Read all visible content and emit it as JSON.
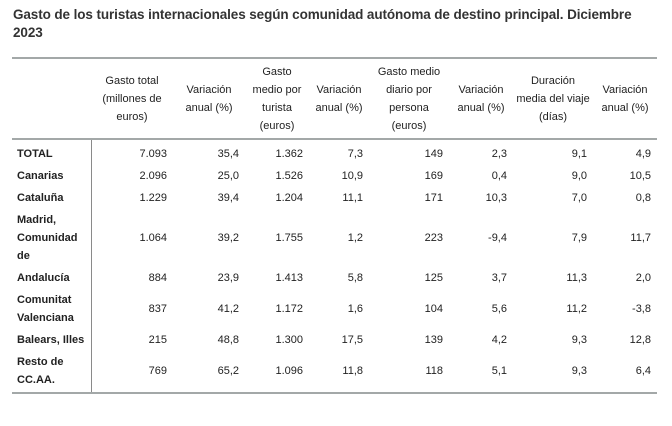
{
  "title": "Gasto de los turistas internacionales según comunidad autónoma de destino principal. Diciembre 2023",
  "table": {
    "columns": [
      "",
      "Gasto total (millones de euros)",
      "Variación anual (%)",
      "Gasto medio por turista (euros)",
      "Variación anual (%)",
      "Gasto medio diario por persona (euros)",
      "Variación anual (%)",
      "Duración media del viaje (días)",
      "Variación anual (%)"
    ],
    "rows": [
      {
        "label": "TOTAL",
        "values": [
          "7.093",
          "35,4",
          "1.362",
          "7,3",
          "149",
          "2,3",
          "9,1",
          "4,9"
        ]
      },
      {
        "label": "Canarias",
        "values": [
          "2.096",
          "25,0",
          "1.526",
          "10,9",
          "169",
          "0,4",
          "9,0",
          "10,5"
        ]
      },
      {
        "label": "Cataluña",
        "values": [
          "1.229",
          "39,4",
          "1.204",
          "11,1",
          "171",
          "10,3",
          "7,0",
          "0,8"
        ]
      },
      {
        "label": "Madrid, Comunidad de",
        "values": [
          "1.064",
          "39,2",
          "1.755",
          "1,2",
          "223",
          "-9,4",
          "7,9",
          "11,7"
        ]
      },
      {
        "label": "Andalucía",
        "values": [
          "884",
          "23,9",
          "1.413",
          "5,8",
          "125",
          "3,7",
          "11,3",
          "2,0"
        ]
      },
      {
        "label": "Comunitat Valenciana",
        "values": [
          "837",
          "41,2",
          "1.172",
          "1,6",
          "104",
          "5,6",
          "11,2",
          "-3,8"
        ]
      },
      {
        "label": "Balears, Illes",
        "values": [
          "215",
          "48,8",
          "1.300",
          "17,5",
          "139",
          "4,2",
          "9,3",
          "12,8"
        ]
      },
      {
        "label": "Resto de CC.AA.",
        "values": [
          "769",
          "65,2",
          "1.096",
          "11,8",
          "118",
          "5,1",
          "9,3",
          "6,4"
        ]
      }
    ]
  },
  "colors": {
    "border": "#a3a8a8",
    "divider": "#8a8a8a",
    "text": "#222222"
  }
}
